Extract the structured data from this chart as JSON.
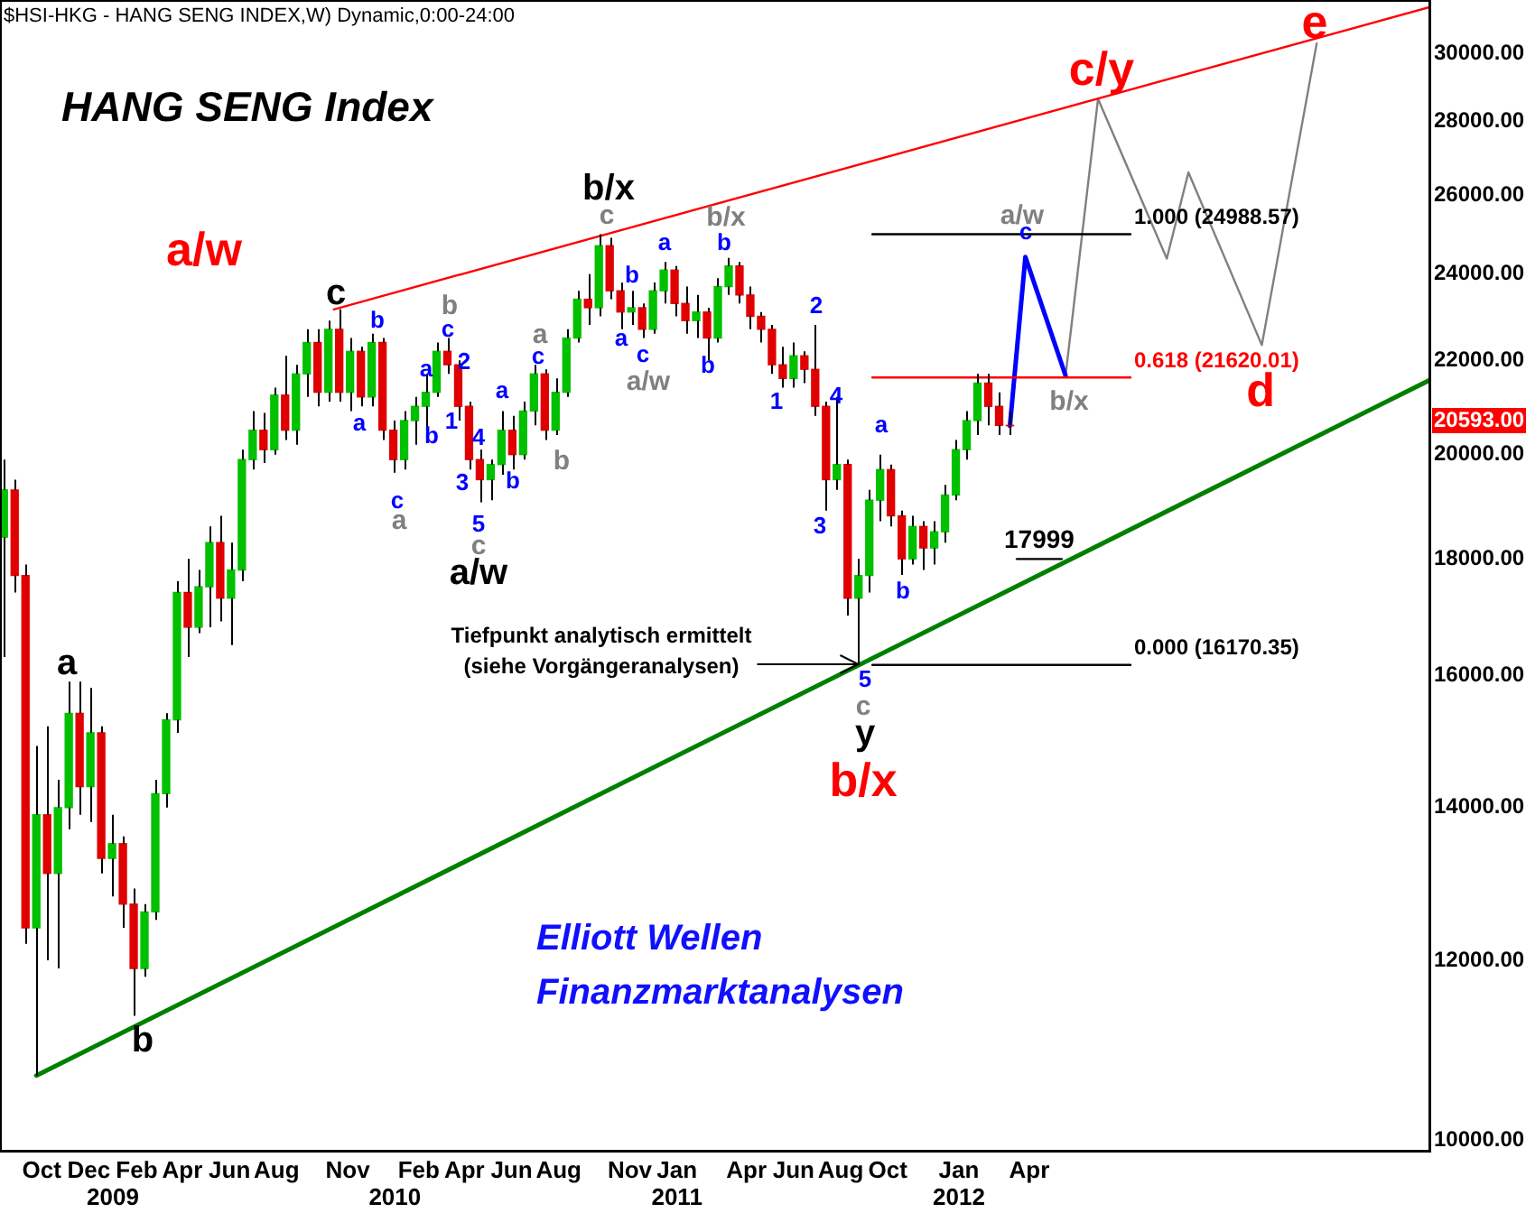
{
  "chart_data": {
    "type": "candlestick",
    "title": "HANG SENG Index",
    "subtitle": "$HSI-HKG - HANG SENG INDEX,W) Dynamic,0:00-24:00",
    "x": [
      "2008-08-13",
      "2008-08-27",
      "2008-09-10",
      "2008-09-24",
      "2008-10-08",
      "2008-10-22",
      "2008-11-05",
      "2008-11-19",
      "2008-12-03",
      "2008-12-17",
      "2008-12-31",
      "2009-01-14",
      "2009-01-28",
      "2009-02-11",
      "2009-02-25",
      "2009-03-11",
      "2009-03-25",
      "2009-04-08",
      "2009-04-22",
      "2009-05-06",
      "2009-05-20",
      "2009-06-03",
      "2009-06-17",
      "2009-07-01",
      "2009-07-15",
      "2009-07-29",
      "2009-08-12",
      "2009-08-26",
      "2009-09-09",
      "2009-09-23",
      "2009-10-07",
      "2009-10-21",
      "2009-11-04",
      "2009-11-18",
      "2009-12-02",
      "2009-12-16",
      "2009-12-30",
      "2010-01-13",
      "2010-01-27",
      "2010-02-10",
      "2010-02-24",
      "2010-03-10",
      "2010-03-24",
      "2010-04-07",
      "2010-04-21",
      "2010-05-05",
      "2010-05-19",
      "2010-06-02",
      "2010-06-16",
      "2010-06-30",
      "2010-07-14",
      "2010-07-28",
      "2010-08-11",
      "2010-08-25",
      "2010-09-08",
      "2010-09-22",
      "2010-10-06",
      "2010-10-20",
      "2010-11-03",
      "2010-11-17",
      "2010-12-01",
      "2010-12-15",
      "2010-12-29",
      "2011-01-12",
      "2011-01-26",
      "2011-02-09",
      "2011-02-23",
      "2011-03-09",
      "2011-03-23",
      "2011-04-06",
      "2011-04-20",
      "2011-05-04",
      "2011-05-18",
      "2011-06-01",
      "2011-06-15",
      "2011-06-29",
      "2011-07-13",
      "2011-07-27",
      "2011-08-10",
      "2011-08-24",
      "2011-09-07",
      "2011-09-21",
      "2011-10-05",
      "2011-10-19",
      "2011-11-02",
      "2011-11-16",
      "2011-11-30",
      "2011-12-14",
      "2011-12-28",
      "2012-01-11",
      "2012-01-25",
      "2012-02-08",
      "2012-02-22",
      "2012-03-07"
    ],
    "ohlc": [
      [
        18400,
        19900,
        16300,
        19300
      ],
      [
        19300,
        19500,
        17400,
        17700
      ],
      [
        17700,
        17900,
        12200,
        12400
      ],
      [
        12400,
        14900,
        10680,
        13900
      ],
      [
        13900,
        15200,
        12000,
        13100
      ],
      [
        13100,
        14400,
        11900,
        14000
      ],
      [
        14000,
        15900,
        13700,
        15400
      ],
      [
        15400,
        15900,
        13900,
        14300
      ],
      [
        14300,
        15800,
        13800,
        15100
      ],
      [
        15100,
        15200,
        13100,
        13300
      ],
      [
        13300,
        13900,
        12800,
        13500
      ],
      [
        13500,
        13600,
        12400,
        12700
      ],
      [
        12700,
        12900,
        11345,
        11900
      ],
      [
        11900,
        12700,
        11800,
        12600
      ],
      [
        12600,
        14400,
        12500,
        14200
      ],
      [
        14200,
        15400,
        14000,
        15300
      ],
      [
        15300,
        17600,
        15100,
        17400
      ],
      [
        17400,
        18000,
        16300,
        16800
      ],
      [
        16800,
        17800,
        16700,
        17500
      ],
      [
        17500,
        18600,
        16800,
        18300
      ],
      [
        18300,
        18800,
        16900,
        17300
      ],
      [
        17300,
        18300,
        16500,
        17800
      ],
      [
        17800,
        20100,
        17600,
        19900
      ],
      [
        19900,
        20900,
        19700,
        20500
      ],
      [
        20500,
        20860,
        19830,
        20100
      ],
      [
        20100,
        21400,
        20000,
        21240
      ],
      [
        21240,
        22100,
        20300,
        20500
      ],
      [
        20500,
        21900,
        20200,
        21700
      ],
      [
        21700,
        22700,
        21200,
        22400
      ],
      [
        22400,
        22700,
        21000,
        21300
      ],
      [
        21300,
        22900,
        21100,
        22700
      ],
      [
        22700,
        23160,
        21100,
        21300
      ],
      [
        21300,
        22500,
        20900,
        22200
      ],
      [
        22200,
        22300,
        21000,
        21200
      ],
      [
        21200,
        22600,
        21000,
        22400
      ],
      [
        22400,
        22500,
        20300,
        20500
      ],
      [
        20500,
        20700,
        19640,
        19900
      ],
      [
        19900,
        20900,
        19700,
        20700
      ],
      [
        20700,
        21200,
        20200,
        21000
      ],
      [
        21000,
        21700,
        20500,
        21300
      ],
      [
        21300,
        22400,
        21200,
        22200
      ],
      [
        22200,
        22500,
        21700,
        21900
      ],
      [
        21900,
        22000,
        20700,
        21000
      ],
      [
        21000,
        21100,
        19700,
        19900
      ],
      [
        19900,
        20100,
        19060,
        19500
      ],
      [
        19500,
        19900,
        19100,
        19800
      ],
      [
        19800,
        20900,
        19600,
        20500
      ],
      [
        20500,
        20800,
        19700,
        20000
      ],
      [
        20000,
        21100,
        19900,
        20900
      ],
      [
        20900,
        21900,
        20600,
        21700
      ],
      [
        21700,
        21800,
        20300,
        20500
      ],
      [
        20500,
        21600,
        20400,
        21300
      ],
      [
        21300,
        22700,
        21200,
        22500
      ],
      [
        22500,
        23600,
        22400,
        23400
      ],
      [
        23400,
        24000,
        22800,
        23200
      ],
      [
        23200,
        24988,
        23000,
        24700
      ],
      [
        24700,
        24900,
        23400,
        23600
      ],
      [
        23600,
        23800,
        22700,
        23100
      ],
      [
        23100,
        23600,
        22800,
        23200
      ],
      [
        23200,
        23300,
        22500,
        22700
      ],
      [
        22700,
        23800,
        22600,
        23600
      ],
      [
        23600,
        24300,
        23300,
        24100
      ],
      [
        24100,
        24200,
        23000,
        23300
      ],
      [
        23300,
        23700,
        22600,
        22900
      ],
      [
        22900,
        23500,
        22500,
        23100
      ],
      [
        23100,
        23200,
        22000,
        22500
      ],
      [
        22500,
        23900,
        22400,
        23700
      ],
      [
        23700,
        24400,
        23500,
        24200
      ],
      [
        24200,
        24300,
        23300,
        23500
      ],
      [
        23500,
        23700,
        22700,
        23000
      ],
      [
        23000,
        23100,
        22400,
        22700
      ],
      [
        22700,
        22800,
        21700,
        21900
      ],
      [
        21900,
        22300,
        21400,
        21600
      ],
      [
        21600,
        22400,
        21400,
        22100
      ],
      [
        22100,
        22200,
        21500,
        21800
      ],
      [
        21800,
        22800,
        20800,
        21000
      ],
      [
        21000,
        21100,
        18900,
        19500
      ],
      [
        19500,
        21200,
        19300,
        19800
      ],
      [
        19800,
        19900,
        17000,
        17300
      ],
      [
        17300,
        18000,
        16170.35,
        17700
      ],
      [
        17700,
        19300,
        17400,
        19100
      ],
      [
        19100,
        20000,
        18700,
        19700
      ],
      [
        19700,
        19800,
        18600,
        18800
      ],
      [
        18800,
        18900,
        17710,
        18000
      ],
      [
        18000,
        18800,
        17900,
        18600
      ],
      [
        18600,
        18700,
        17800,
        18200
      ],
      [
        18200,
        18700,
        17900,
        18500
      ],
      [
        18500,
        19400,
        18300,
        19200
      ],
      [
        19200,
        20300,
        19100,
        20100
      ],
      [
        20100,
        20900,
        19900,
        20700
      ],
      [
        20700,
        21700,
        20400,
        21500
      ],
      [
        21500,
        21700,
        20600,
        21000
      ],
      [
        21000,
        21300,
        20400,
        20600
      ],
      [
        20600,
        20900,
        20400,
        20593
      ]
    ],
    "colors": [
      "#00c000",
      "#e00000",
      "#e00000",
      "#00c000",
      "#e00000",
      "#00c000",
      "#00c000",
      "#e00000",
      "#00c000",
      "#e00000",
      "#00c000",
      "#e00000",
      "#e00000",
      "#00c000",
      "#00c000",
      "#00c000",
      "#00c000",
      "#e00000",
      "#00c000",
      "#00c000",
      "#e00000",
      "#00c000",
      "#00c000",
      "#00c000",
      "#e00000",
      "#00c000",
      "#e00000",
      "#00c000",
      "#00c000",
      "#e00000",
      "#00c000",
      "#e00000",
      "#00c000",
      "#e00000",
      "#00c000",
      "#e00000",
      "#e00000",
      "#00c000",
      "#00c000",
      "#00c000",
      "#00c000",
      "#e00000",
      "#e00000",
      "#e00000",
      "#e00000",
      "#00c000",
      "#00c000",
      "#e00000",
      "#00c000",
      "#00c000",
      "#e00000",
      "#00c000",
      "#00c000",
      "#00c000",
      "#e00000",
      "#00c000",
      "#e00000",
      "#e00000",
      "#00c000",
      "#e00000",
      "#00c000",
      "#00c000",
      "#e00000",
      "#e00000",
      "#00c000",
      "#e00000",
      "#00c000",
      "#00c000",
      "#e00000",
      "#e00000",
      "#e00000",
      "#e00000",
      "#e00000",
      "#00c000",
      "#e00000",
      "#e00000",
      "#e00000",
      "#00c000",
      "#e00000",
      "#00c000",
      "#00c000",
      "#00c000",
      "#e00000",
      "#e00000",
      "#00c000",
      "#e00000",
      "#00c000",
      "#00c000",
      "#00c000",
      "#00c000",
      "#00c000",
      "#e00000",
      "#e00000",
      "#e00000"
    ],
    "series": [
      {
        "type": "line",
        "color": "#ff0000",
        "x": [
          "2009-10-14",
          "2013-09-02"
        ],
        "values": [
          23160,
          31440
        ]
      },
      {
        "type": "line",
        "color": "#008000",
        "x": [
          "2008-09-24",
          "2013-09-02"
        ],
        "values": [
          10680,
          21570
        ]
      },
      {
        "type": "line",
        "color": "#000000",
        "x": [
          "2011-09-11",
          "2012-08-10"
        ],
        "values": [
          24988.57,
          24988.57
        ]
      },
      {
        "type": "line",
        "color": "#ff0000",
        "x": [
          "2011-09-11",
          "2012-08-10"
        ],
        "values": [
          21620.01,
          21620.01
        ]
      },
      {
        "type": "line",
        "color": "#000000",
        "x": [
          "2011-09-11",
          "2012-08-10"
        ],
        "values": [
          16170.35,
          16170.35
        ]
      },
      {
        "type": "line",
        "color": "#000000",
        "x": [
          "2012-03-16",
          "2012-05-13"
        ],
        "values": [
          17999,
          17999
        ]
      },
      {
        "type": "line",
        "color": "#0000ff",
        "x": [
          "2012-03-07",
          "2012-03-27",
          "2012-05-18"
        ],
        "values": [
          20593,
          24420,
          21660
        ]
      },
      {
        "type": "line",
        "color": "#808080",
        "x": [
          "2012-05-18",
          "2012-06-29",
          "2012-09-26",
          "2012-10-24",
          "2013-01-27",
          "2013-04-08"
        ],
        "values": [
          21660,
          28650,
          24380,
          26600,
          22340,
          30300
        ]
      }
    ],
    "log": true,
    "ylim": [
      9890,
      31660
    ],
    "yticks": [
      {
        "value": 10000,
        "label": "10000.00"
      },
      {
        "value": 12000,
        "label": "12000.00"
      },
      {
        "value": 14000,
        "label": "14000.00"
      },
      {
        "value": 16000,
        "label": "16000.00"
      },
      {
        "value": 18000,
        "label": "18000.00"
      },
      {
        "value": 20000,
        "label": "20000.00"
      },
      {
        "value": 22000,
        "label": "22000.00"
      },
      {
        "value": 24000,
        "label": "24000.00"
      },
      {
        "value": 26000,
        "label": "26000.00"
      },
      {
        "value": 28000,
        "label": "28000.00"
      },
      {
        "value": 30000,
        "label": "30000.00"
      }
    ],
    "xlim": [
      "2008-08-08",
      "2013-09-02"
    ],
    "xticks": [
      {
        "value": "2008-10-01",
        "label": "Oct"
      },
      {
        "value": "2008-12-01",
        "label": "Dec"
      },
      {
        "value": "2009-02-01",
        "label": "Feb"
      },
      {
        "value": "2009-04-01",
        "label": "Apr"
      },
      {
        "value": "2009-06-01",
        "label": "Jun"
      },
      {
        "value": "2009-08-01",
        "label": "Aug"
      },
      {
        "value": "2009-11-01",
        "label": "Nov"
      },
      {
        "value": "2010-02-01",
        "label": "Feb"
      },
      {
        "value": "2010-04-01",
        "label": "Apr"
      },
      {
        "value": "2010-06-01",
        "label": "Jun"
      },
      {
        "value": "2010-08-01",
        "label": "Aug"
      },
      {
        "value": "2010-11-01",
        "label": "Nov"
      },
      {
        "value": "2011-01-01",
        "label": "Jan"
      },
      {
        "value": "2011-04-01",
        "label": "Apr"
      },
      {
        "value": "2011-06-01",
        "label": "Jun"
      },
      {
        "value": "2011-08-01",
        "label": "Aug"
      },
      {
        "value": "2011-10-01",
        "label": "Oct"
      },
      {
        "value": "2012-01-01",
        "label": "Jan"
      },
      {
        "value": "2012-04-01",
        "label": "Apr"
      }
    ],
    "x2lim": [
      "2008-08-08",
      "2013-09-02"
    ],
    "x2ticks": [
      {
        "value": "2009-01-01",
        "label": "2009"
      },
      {
        "value": "2010-01-01",
        "label": "2010"
      },
      {
        "value": "2011-01-01",
        "label": "2011"
      },
      {
        "value": "2012-01-01",
        "label": "2012"
      }
    ],
    "grid": false,
    "annotations": [
      "a/w",
      "b/x",
      "c/y",
      "d",
      "e",
      "a",
      "b",
      "c",
      "b/x",
      "a/w",
      "y",
      "b",
      "a",
      "c",
      "a",
      "b",
      "c",
      "2",
      "1",
      "4",
      "3",
      "5",
      "a",
      "b",
      "c",
      "a",
      "b",
      "c",
      "a",
      "b",
      "b",
      "1",
      "2",
      "4",
      "3",
      "a",
      "b",
      "5",
      "c",
      "a",
      "b",
      "c",
      "a",
      "b",
      "c",
      "a/w",
      "b/x",
      "c",
      "a/w",
      "b/x",
      {
        "text": "1.000 (24988.57)",
        "x": "2012-08-10",
        "y": 24988.57
      },
      {
        "text": "0.618 (21620.01)",
        "x": "2012-08-10",
        "y": 21620.01
      },
      {
        "text": "0.000 (16170.35)",
        "x": "2012-08-10",
        "y": 16170.35
      },
      {
        "text": "17999",
        "x": "2012-04-14",
        "y": 17999
      },
      "Tiefpunkt analytisch ermittelt\n(siehe Vorgängeranalysen)",
      "20593.00",
      "Elliott Wellen\nFinanzmarktanalysen"
    ]
  }
}
